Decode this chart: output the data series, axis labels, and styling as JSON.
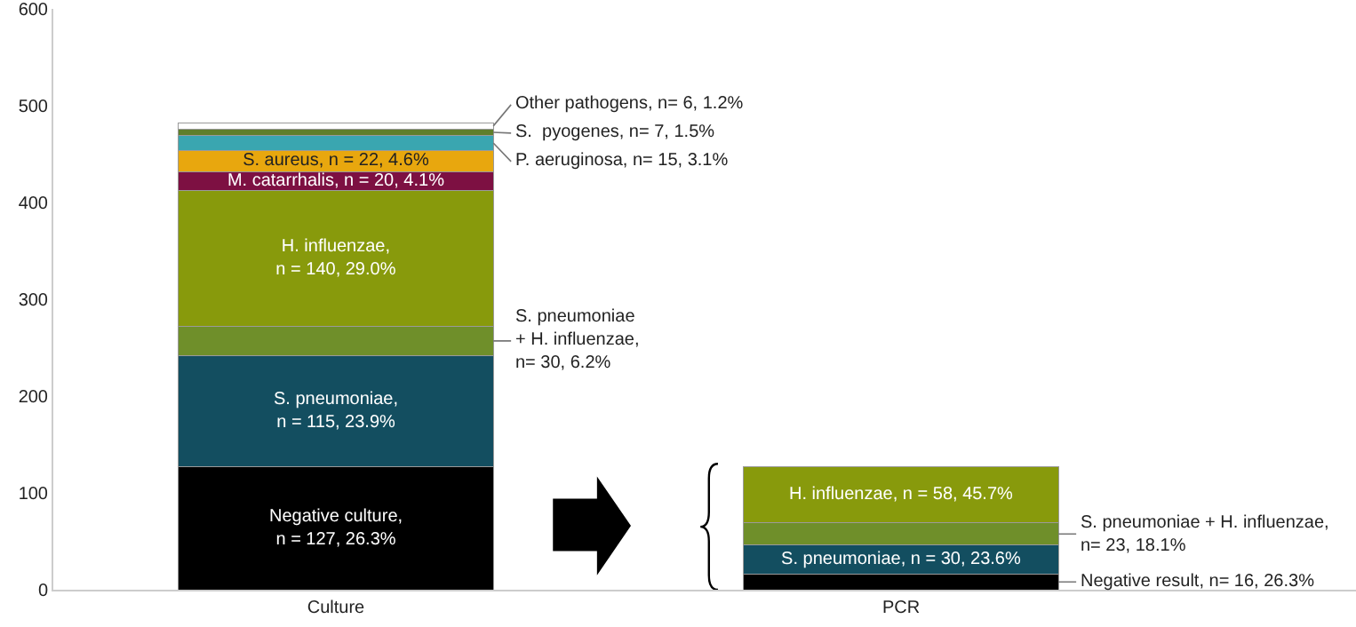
{
  "chart_data": {
    "type": "bar",
    "stacked": true,
    "categories": [
      "Culture",
      "PCR"
    ],
    "ylim": [
      0,
      600
    ],
    "yticks": [
      0,
      100,
      200,
      300,
      400,
      500,
      600
    ],
    "series": [
      {
        "color": "#000000",
        "values": [
          127,
          16
        ],
        "value_labels": [
          "Negative culture,\nn = 127, 26.3%",
          "Negative result, n= 16, 26.3%"
        ]
      },
      {
        "color": "#134e60",
        "values": [
          115,
          30
        ],
        "value_labels": [
          "S. pneumoniae,\nn = 115, 23.9%",
          "S. pneumoniae, n = 30, 23.6%"
        ]
      },
      {
        "color": "#6f8f2a",
        "values": [
          30,
          23
        ],
        "value_labels": [
          "S. pneumoniae\n+ H. influenzae,\nn= 30, 6.2%",
          "S. pneumoniae + H. influenzae,\nn= 23, 18.1%"
        ]
      },
      {
        "color": "#889a0c",
        "values": [
          140,
          58
        ],
        "value_labels": [
          "H. influenzae,\nn = 140, 29.0%",
          "H. influenzae, n = 58, 45.7%"
        ]
      },
      {
        "color": "#7d1042",
        "values": [
          20,
          null
        ],
        "value_labels": [
          "M. catarrhalis, n = 20, 4.1%",
          null
        ]
      },
      {
        "color": "#e8a70e",
        "values": [
          22,
          null
        ],
        "value_labels": [
          "S. aureus, n = 22, 4.6%",
          null
        ]
      },
      {
        "color": "#3aa6b0",
        "values": [
          15,
          null
        ],
        "value_labels": [
          "P. aeruginosa, n= 15, 3.1%",
          null
        ]
      },
      {
        "color": "#5f7f2a",
        "values": [
          7,
          null
        ],
        "value_labels": [
          "S.  pyogenes, n= 7, 1.5%",
          null
        ]
      },
      {
        "color": "#ffffff",
        "values": [
          6,
          null
        ],
        "value_labels": [
          "Other pathogens, n= 6, 1.2%",
          null
        ]
      }
    ]
  }
}
